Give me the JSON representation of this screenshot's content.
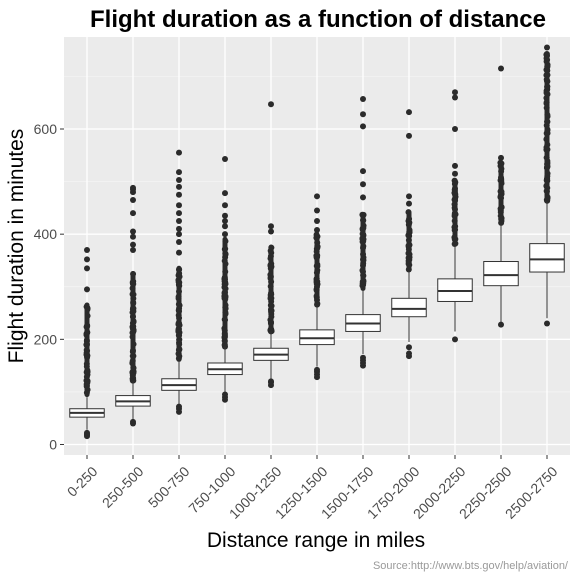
{
  "chart_data": {
    "type": "boxplot",
    "title": "Flight duration as a function of distance",
    "xlabel": "Distance range in miles",
    "ylabel": "Flight duration in minutes",
    "source": "Source:http://www.bts.gov/help/aviation/",
    "ylim": [
      -20,
      775
    ],
    "yticks": [
      0,
      200,
      400,
      600
    ],
    "grid": true,
    "categories": [
      "0-250",
      "250-500",
      "500-750",
      "750-1000",
      "1000-1250",
      "1250-1500",
      "1500-1750",
      "1750-2000",
      "2000-2250",
      "2250-2500",
      "2500-2750"
    ],
    "boxes": [
      {
        "q1": 52,
        "median": 60,
        "q3": 68,
        "whisker_low": 28,
        "whisker_high": 90,
        "outliers_low": [
          16,
          18,
          20,
          22
        ],
        "outliers_high": [
          295,
          335,
          352,
          370
        ],
        "outlier_dense_range": [
          90,
          270
        ]
      },
      {
        "q1": 73,
        "median": 82,
        "q3": 93,
        "whisker_low": 46,
        "whisker_high": 120,
        "outliers_low": [
          40,
          43
        ],
        "outliers_high": [
          370,
          380,
          395,
          405,
          440,
          465,
          480,
          485,
          488
        ],
        "outlier_dense_range": [
          120,
          330
        ]
      },
      {
        "q1": 103,
        "median": 113,
        "q3": 125,
        "whisker_low": 75,
        "whisker_high": 157,
        "outliers_low": [
          62,
          68,
          72
        ],
        "outliers_high": [
          365,
          385,
          400,
          410,
          425,
          440,
          455,
          475,
          490,
          503,
          518,
          555
        ],
        "outlier_dense_range": [
          157,
          340
        ]
      },
      {
        "q1": 133,
        "median": 143,
        "q3": 155,
        "whisker_low": 100,
        "whisker_high": 186,
        "outliers_low": [
          85,
          90,
          95
        ],
        "outliers_high": [
          400,
          415,
          425,
          435,
          455,
          478,
          543
        ],
        "outlier_dense_range": [
          186,
          395
        ]
      },
      {
        "q1": 160,
        "median": 171,
        "q3": 183,
        "whisker_low": 125,
        "whisker_high": 215,
        "outliers_low": [
          113,
          118,
          120
        ],
        "outliers_high": [
          405,
          415,
          647
        ],
        "outlier_dense_range": [
          215,
          380
        ]
      },
      {
        "q1": 190,
        "median": 202,
        "q3": 218,
        "whisker_low": 148,
        "whisker_high": 262,
        "outliers_low": [
          128,
          133,
          138,
          142
        ],
        "outliers_high": [
          408,
          425,
          445,
          472
        ],
        "outlier_dense_range": [
          262,
          400
        ]
      },
      {
        "q1": 215,
        "median": 230,
        "q3": 247,
        "whisker_low": 172,
        "whisker_high": 292,
        "outliers_low": [
          150,
          155,
          160,
          165
        ],
        "outliers_high": [
          470,
          495,
          520,
          605,
          628,
          657
        ],
        "outlier_dense_range": [
          292,
          440
        ]
      },
      {
        "q1": 243,
        "median": 258,
        "q3": 278,
        "whisker_low": 195,
        "whisker_high": 330,
        "outliers_low": [
          168,
          173,
          185
        ],
        "outliers_high": [
          458,
          472,
          587,
          632
        ],
        "outlier_dense_range": [
          330,
          445
        ]
      },
      {
        "q1": 272,
        "median": 292,
        "q3": 315,
        "whisker_low": 215,
        "whisker_high": 378,
        "outliers_low": [
          200
        ],
        "outliers_high": [
          515,
          530,
          600,
          660,
          670
        ],
        "outlier_dense_range": [
          378,
          505
        ]
      },
      {
        "q1": 302,
        "median": 322,
        "q3": 348,
        "whisker_low": 230,
        "whisker_high": 418,
        "outliers_low": [
          228
        ],
        "outliers_high": [
          545,
          715
        ],
        "outlier_dense_range": [
          418,
          540
        ]
      },
      {
        "q1": 328,
        "median": 352,
        "q3": 382,
        "whisker_low": 240,
        "whisker_high": 462,
        "outliers_low": [
          230
        ],
        "outliers_high": [
          755
        ],
        "outlier_dense_range": [
          462,
          745
        ]
      }
    ]
  }
}
